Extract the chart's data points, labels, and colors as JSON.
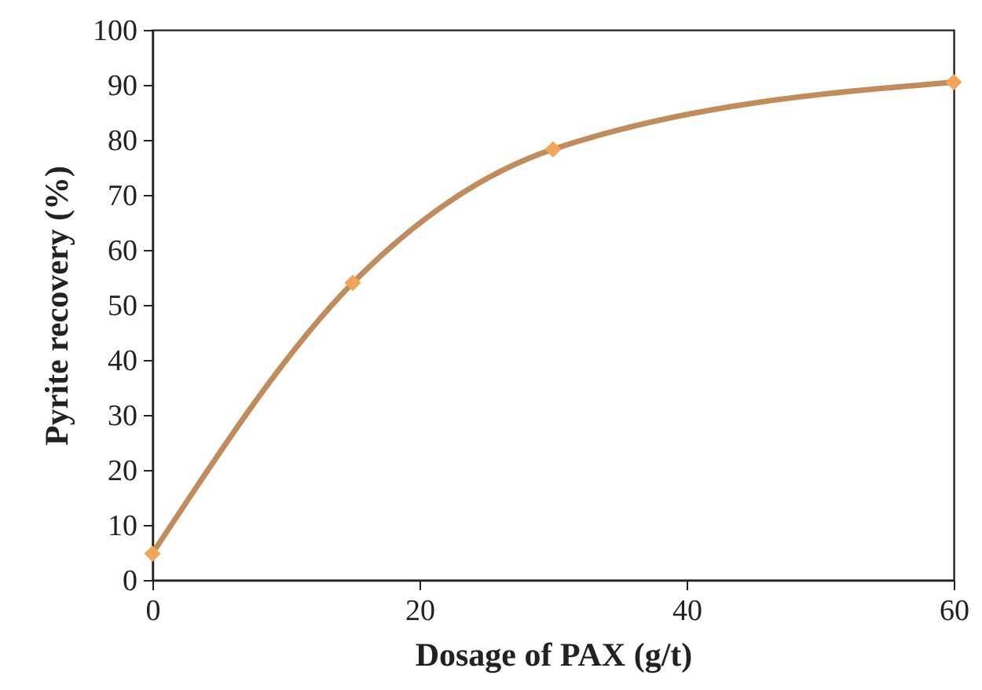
{
  "chart_data": {
    "type": "line",
    "xlabel": "Dosage of PAX (g/t)",
    "ylabel": "Pyrite recovery (%)",
    "x": [
      0,
      15,
      30,
      60
    ],
    "series": [
      {
        "color": "#c08c5c",
        "values": [
          4.8,
          54,
          78.3,
          90.5
        ]
      }
    ],
    "xlim": [
      0,
      60
    ],
    "xticks": [
      0,
      20,
      40,
      60
    ],
    "ylim": [
      0,
      100
    ],
    "yticks": [
      0,
      10,
      20,
      30,
      40,
      50,
      60,
      70,
      80,
      90,
      100
    ],
    "grid": false,
    "marker": "diamond",
    "line_style": "solid"
  }
}
